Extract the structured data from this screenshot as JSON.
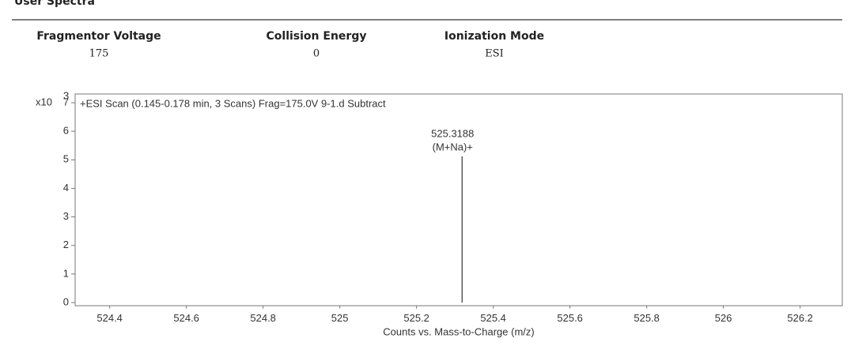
{
  "header": {
    "title": "User Spectra",
    "fields": [
      {
        "label": "Fragmentor Voltage",
        "value": "175"
      },
      {
        "label": "Collision Energy",
        "value": "0"
      },
      {
        "label": "Ionization Mode",
        "value": "ESI"
      }
    ]
  },
  "chart_data": {
    "type": "stem",
    "title": "+ESI Scan (0.145-0.178 min, 3 Scans) Frag=175.0V 9-1.d  Subtract",
    "x_label": "Counts vs. Mass-to-Charge (m/z)",
    "y_scale_label": "x10",
    "y_scale_exponent": "3",
    "x": [
      525.3188
    ],
    "values": [
      5.12
    ],
    "color": "#333333",
    "point_labels": [
      "525.3188"
    ],
    "annotations": [
      "(M+Na)+"
    ],
    "xlim": [
      524.31,
      526.31
    ],
    "xticks": [
      524.4,
      524.6,
      524.8,
      525,
      525.2,
      525.4,
      525.6,
      525.8,
      526,
      526.2
    ],
    "ylim": [
      -0.1,
      7.3
    ],
    "yticks": [
      0,
      1,
      2,
      3,
      4,
      5,
      6,
      7
    ]
  }
}
